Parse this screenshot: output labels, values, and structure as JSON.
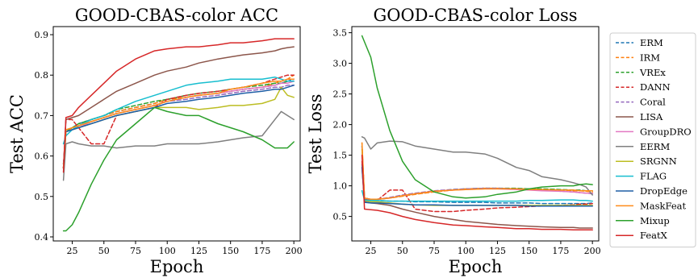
{
  "chart_data": [
    {
      "type": "line",
      "title": "GOOD-CBAS-color ACC",
      "xlabel": "Epoch",
      "ylabel": "Test ACC",
      "xlim": [
        10,
        205
      ],
      "ylim": [
        0.39,
        0.92
      ],
      "xticks": [
        25,
        50,
        75,
        100,
        125,
        150,
        175,
        200
      ],
      "yticks": [
        0.4,
        0.5,
        0.6,
        0.7,
        0.8,
        0.9
      ],
      "x": [
        18,
        20,
        25,
        30,
        40,
        50,
        60,
        75,
        90,
        100,
        115,
        125,
        140,
        150,
        160,
        175,
        185,
        190,
        195,
        200
      ],
      "series": [
        {
          "name": "ERM",
          "color": "#1f77b4",
          "dash": true,
          "values": [
            0.57,
            0.66,
            0.67,
            0.68,
            0.69,
            0.7,
            0.71,
            0.72,
            0.73,
            0.74,
            0.745,
            0.75,
            0.755,
            0.76,
            0.765,
            0.77,
            0.775,
            0.78,
            0.785,
            0.79
          ]
        },
        {
          "name": "IRM",
          "color": "#ff7f0e",
          "dash": true,
          "values": [
            0.57,
            0.66,
            0.67,
            0.675,
            0.69,
            0.7,
            0.71,
            0.72,
            0.73,
            0.74,
            0.745,
            0.75,
            0.755,
            0.76,
            0.765,
            0.77,
            0.78,
            0.785,
            0.79,
            0.8
          ]
        },
        {
          "name": "VREx",
          "color": "#2ca02c",
          "dash": true,
          "values": [
            0.58,
            0.66,
            0.67,
            0.68,
            0.69,
            0.7,
            0.715,
            0.725,
            0.735,
            0.74,
            0.75,
            0.755,
            0.76,
            0.765,
            0.77,
            0.775,
            0.78,
            0.78,
            0.785,
            0.785
          ]
        },
        {
          "name": "DANN",
          "color": "#d62728",
          "dash": true,
          "values": [
            0.57,
            0.69,
            0.69,
            0.67,
            0.63,
            0.63,
            0.7,
            0.71,
            0.72,
            0.74,
            0.75,
            0.755,
            0.76,
            0.765,
            0.77,
            0.78,
            0.79,
            0.795,
            0.8,
            0.8
          ]
        },
        {
          "name": "Coral",
          "color": "#9467bd",
          "dash": true,
          "values": [
            0.58,
            0.66,
            0.665,
            0.675,
            0.685,
            0.695,
            0.705,
            0.715,
            0.725,
            0.735,
            0.74,
            0.745,
            0.75,
            0.755,
            0.76,
            0.765,
            0.77,
            0.77,
            0.775,
            0.775
          ]
        },
        {
          "name": "LISA",
          "color": "#8c564b",
          "dash": false,
          "values": [
            0.57,
            0.69,
            0.695,
            0.7,
            0.72,
            0.74,
            0.76,
            0.78,
            0.8,
            0.81,
            0.82,
            0.83,
            0.84,
            0.845,
            0.85,
            0.855,
            0.86,
            0.865,
            0.868,
            0.87
          ]
        },
        {
          "name": "GroupDRO",
          "color": "#e377c2",
          "dash": false,
          "values": [
            0.57,
            0.66,
            0.665,
            0.67,
            0.685,
            0.695,
            0.705,
            0.715,
            0.725,
            0.735,
            0.745,
            0.75,
            0.755,
            0.76,
            0.765,
            0.77,
            0.775,
            0.78,
            0.78,
            0.785
          ]
        },
        {
          "name": "EERM",
          "color": "#7f7f7f",
          "dash": false,
          "values": [
            0.54,
            0.63,
            0.635,
            0.63,
            0.625,
            0.625,
            0.62,
            0.625,
            0.625,
            0.63,
            0.63,
            0.63,
            0.635,
            0.64,
            0.645,
            0.65,
            0.69,
            0.71,
            0.7,
            0.69
          ]
        },
        {
          "name": "SRGNN",
          "color": "#bcbd22",
          "dash": false,
          "values": [
            0.57,
            0.66,
            0.665,
            0.67,
            0.68,
            0.69,
            0.7,
            0.71,
            0.72,
            0.72,
            0.72,
            0.715,
            0.72,
            0.725,
            0.725,
            0.73,
            0.74,
            0.77,
            0.75,
            0.745
          ]
        },
        {
          "name": "FLAG",
          "color": "#17becf",
          "dash": false,
          "values": [
            0.63,
            0.65,
            0.665,
            0.675,
            0.69,
            0.7,
            0.715,
            0.735,
            0.75,
            0.76,
            0.775,
            0.78,
            0.785,
            0.79,
            0.79,
            0.79,
            0.795,
            0.79,
            0.785,
            0.785
          ]
        },
        {
          "name": "DropEdge",
          "color": "#1f5fa6",
          "dash": false,
          "values": [
            0.57,
            0.66,
            0.665,
            0.67,
            0.68,
            0.69,
            0.7,
            0.71,
            0.72,
            0.73,
            0.735,
            0.74,
            0.745,
            0.75,
            0.755,
            0.76,
            0.765,
            0.765,
            0.77,
            0.775
          ]
        },
        {
          "name": "MaskFeat",
          "color": "#ff8c1a",
          "dash": false,
          "values": [
            0.57,
            0.665,
            0.67,
            0.675,
            0.685,
            0.695,
            0.705,
            0.715,
            0.725,
            0.735,
            0.745,
            0.75,
            0.755,
            0.765,
            0.77,
            0.78,
            0.785,
            0.785,
            0.79,
            0.79
          ]
        },
        {
          "name": "Mixup",
          "color": "#2ca02c",
          "dash": false,
          "values": [
            0.415,
            0.415,
            0.43,
            0.46,
            0.53,
            0.59,
            0.64,
            0.68,
            0.72,
            0.71,
            0.7,
            0.7,
            0.68,
            0.67,
            0.66,
            0.64,
            0.62,
            0.62,
            0.62,
            0.635
          ]
        },
        {
          "name": "FeatX",
          "color": "#d62728",
          "dash": false,
          "values": [
            0.56,
            0.695,
            0.7,
            0.72,
            0.75,
            0.78,
            0.81,
            0.84,
            0.86,
            0.865,
            0.87,
            0.87,
            0.875,
            0.88,
            0.88,
            0.885,
            0.89,
            0.89,
            0.89,
            0.89
          ]
        }
      ]
    },
    {
      "type": "line",
      "title": "GOOD-CBAS-color Loss",
      "xlabel": "Epoch",
      "ylabel": "Test Loss",
      "xlim": [
        10,
        205
      ],
      "ylim": [
        0.1,
        3.6
      ],
      "xticks": [
        25,
        50,
        75,
        100,
        125,
        150,
        175,
        200
      ],
      "yticks": [
        0.5,
        1.0,
        1.5,
        2.0,
        2.5,
        3.0,
        3.5
      ],
      "x": [
        18,
        20,
        25,
        30,
        40,
        50,
        60,
        75,
        90,
        100,
        115,
        125,
        140,
        150,
        160,
        175,
        185,
        190,
        195,
        200
      ],
      "series": [
        {
          "name": "ERM",
          "color": "#1f77b4",
          "dash": true,
          "values": [
            1.35,
            0.78,
            0.76,
            0.76,
            0.75,
            0.75,
            0.74,
            0.74,
            0.73,
            0.73,
            0.73,
            0.72,
            0.72,
            0.72,
            0.71,
            0.71,
            0.71,
            0.71,
            0.71,
            0.72
          ]
        },
        {
          "name": "IRM",
          "color": "#ff7f0e",
          "dash": true,
          "values": [
            1.7,
            0.8,
            0.78,
            0.78,
            0.8,
            0.83,
            0.86,
            0.9,
            0.93,
            0.95,
            0.96,
            0.96,
            0.95,
            0.95,
            0.94,
            0.93,
            0.92,
            0.92,
            0.91,
            0.9
          ]
        },
        {
          "name": "VREx",
          "color": "#2ca02c",
          "dash": true,
          "values": [
            1.65,
            0.8,
            0.78,
            0.78,
            0.8,
            0.84,
            0.87,
            0.91,
            0.94,
            0.95,
            0.96,
            0.96,
            0.96,
            0.95,
            0.95,
            0.94,
            0.93,
            0.93,
            0.92,
            0.92
          ]
        },
        {
          "name": "DANN",
          "color": "#d62728",
          "dash": true,
          "values": [
            1.4,
            0.78,
            0.77,
            0.76,
            0.93,
            0.93,
            0.62,
            0.58,
            0.58,
            0.6,
            0.62,
            0.64,
            0.65,
            0.66,
            0.67,
            0.68,
            0.69,
            0.7,
            0.7,
            0.71
          ]
        },
        {
          "name": "Coral",
          "color": "#9467bd",
          "dash": true,
          "values": [
            1.65,
            0.8,
            0.78,
            0.78,
            0.81,
            0.85,
            0.88,
            0.92,
            0.94,
            0.95,
            0.96,
            0.96,
            0.95,
            0.94,
            0.93,
            0.91,
            0.9,
            0.89,
            0.88,
            0.87
          ]
        },
        {
          "name": "LISA",
          "color": "#8c564b",
          "dash": false,
          "values": [
            1.3,
            0.74,
            0.72,
            0.71,
            0.68,
            0.62,
            0.57,
            0.5,
            0.45,
            0.42,
            0.39,
            0.37,
            0.35,
            0.34,
            0.33,
            0.32,
            0.32,
            0.31,
            0.31,
            0.31
          ]
        },
        {
          "name": "GroupDRO",
          "color": "#e377c2",
          "dash": false,
          "values": [
            1.6,
            0.8,
            0.78,
            0.78,
            0.8,
            0.84,
            0.87,
            0.91,
            0.93,
            0.94,
            0.95,
            0.95,
            0.94,
            0.93,
            0.92,
            0.91,
            0.9,
            0.89,
            0.88,
            0.88
          ]
        },
        {
          "name": "EERM",
          "color": "#7f7f7f",
          "dash": false,
          "values": [
            1.8,
            1.78,
            1.6,
            1.7,
            1.73,
            1.72,
            1.65,
            1.6,
            1.55,
            1.55,
            1.52,
            1.45,
            1.3,
            1.25,
            1.15,
            1.1,
            1.05,
            1.02,
            0.98,
            0.85
          ]
        },
        {
          "name": "SRGNN",
          "color": "#bcbd22",
          "dash": false,
          "values": [
            1.6,
            0.76,
            0.74,
            0.74,
            0.72,
            0.7,
            0.69,
            0.68,
            0.68,
            0.68,
            0.68,
            0.68,
            0.68,
            0.68,
            0.68,
            0.68,
            0.68,
            0.68,
            0.68,
            0.68
          ]
        },
        {
          "name": "FLAG",
          "color": "#17becf",
          "dash": false,
          "values": [
            0.92,
            0.77,
            0.76,
            0.76,
            0.75,
            0.75,
            0.75,
            0.75,
            0.75,
            0.75,
            0.75,
            0.75,
            0.75,
            0.76,
            0.76,
            0.77,
            0.77,
            0.76,
            0.76,
            0.75
          ]
        },
        {
          "name": "DropEdge",
          "color": "#1f5fa6",
          "dash": false,
          "values": [
            1.3,
            0.73,
            0.72,
            0.72,
            0.71,
            0.7,
            0.69,
            0.69,
            0.68,
            0.68,
            0.68,
            0.68,
            0.68,
            0.67,
            0.67,
            0.67,
            0.67,
            0.67,
            0.67,
            0.67
          ]
        },
        {
          "name": "MaskFeat",
          "color": "#ff8c1a",
          "dash": false,
          "values": [
            1.7,
            0.8,
            0.78,
            0.78,
            0.8,
            0.84,
            0.87,
            0.91,
            0.93,
            0.94,
            0.95,
            0.95,
            0.95,
            0.94,
            0.94,
            0.93,
            0.93,
            0.92,
            0.92,
            0.92
          ]
        },
        {
          "name": "Mixup",
          "color": "#2ca02c",
          "dash": false,
          "values": [
            3.45,
            3.35,
            3.1,
            2.6,
            1.9,
            1.4,
            1.1,
            0.9,
            0.82,
            0.8,
            0.82,
            0.86,
            0.9,
            0.95,
            0.98,
            1.0,
            1.0,
            1.02,
            1.03,
            1.02
          ]
        },
        {
          "name": "FeatX",
          "color": "#d62728",
          "dash": false,
          "values": [
            1.5,
            0.62,
            0.61,
            0.6,
            0.56,
            0.5,
            0.45,
            0.4,
            0.36,
            0.35,
            0.33,
            0.32,
            0.3,
            0.3,
            0.29,
            0.29,
            0.28,
            0.28,
            0.28,
            0.28
          ]
        }
      ]
    }
  ]
}
